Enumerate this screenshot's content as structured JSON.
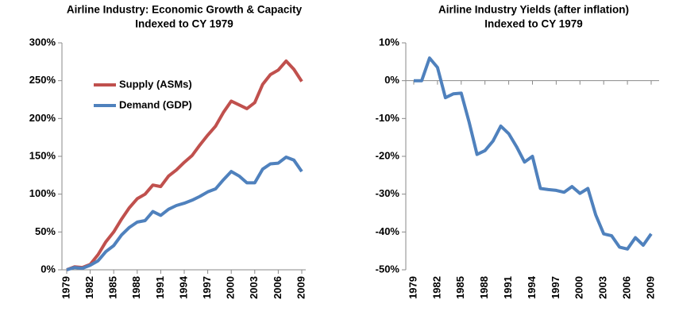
{
  "chart_data": [
    {
      "type": "line",
      "title": "Airline Industry: Economic Growth & Capacity",
      "subtitle": "Indexed to CY 1979",
      "x": [
        1979,
        1980,
        1981,
        1982,
        1983,
        1984,
        1985,
        1986,
        1987,
        1988,
        1989,
        1990,
        1991,
        1992,
        1993,
        1994,
        1995,
        1996,
        1997,
        1998,
        1999,
        2000,
        2001,
        2002,
        2003,
        2004,
        2005,
        2006,
        2007,
        2008,
        2009
      ],
      "series": [
        {
          "name": "Supply (ASMs)",
          "color": "#c0504d",
          "values": [
            0,
            4,
            3,
            7,
            20,
            37,
            50,
            67,
            82,
            94,
            100,
            112,
            110,
            124,
            132,
            142,
            151,
            165,
            178,
            190,
            208,
            223,
            218,
            213,
            221,
            245,
            258,
            264,
            276,
            265,
            249
          ]
        },
        {
          "name": "Demand (GDP)",
          "color": "#4f81bd",
          "values": [
            0,
            3,
            2,
            6,
            12,
            24,
            32,
            46,
            56,
            63,
            65,
            77,
            72,
            80,
            85,
            88,
            92,
            97,
            103,
            107,
            119,
            130,
            124,
            115,
            115,
            133,
            140,
            141,
            149,
            145,
            130
          ]
        }
      ],
      "xlim": [
        1979,
        2009
      ],
      "xticks": [
        1979,
        1982,
        1985,
        1988,
        1991,
        1994,
        1997,
        2000,
        2003,
        2006,
        2009
      ],
      "ylim": [
        0,
        300
      ],
      "yticks": [
        {
          "value": 0,
          "label": "0%"
        },
        {
          "value": 50,
          "label": "50%"
        },
        {
          "value": 100,
          "label": "100%"
        },
        {
          "value": 150,
          "label": "150%"
        },
        {
          "value": 200,
          "label": "200%"
        },
        {
          "value": 250,
          "label": "250%"
        },
        {
          "value": 300,
          "label": "300%"
        }
      ],
      "legend": "upper left"
    },
    {
      "type": "line",
      "title": "Airline Industry Yields (after inflation)",
      "subtitle": "Indexed to CY 1979",
      "x": [
        1979,
        1980,
        1981,
        1982,
        1983,
        1984,
        1985,
        1986,
        1987,
        1988,
        1989,
        1990,
        1991,
        1992,
        1993,
        1994,
        1995,
        1996,
        1997,
        1998,
        1999,
        2000,
        2001,
        2002,
        2003,
        2004,
        2005,
        2006,
        2007,
        2008,
        2009
      ],
      "series": [
        {
          "color": "#4f81bd",
          "values": [
            0,
            0,
            6,
            3.5,
            -4.5,
            -3.5,
            -3.3,
            -11,
            -19.5,
            -18.5,
            -16,
            -12,
            -14,
            -17.5,
            -21.5,
            -20,
            -28.5,
            -28.8,
            -29,
            -29.5,
            -28,
            -29.8,
            -28.5,
            -35.5,
            -40.5,
            -41,
            -44,
            -44.5,
            -41.5,
            -43.5,
            -40.5
          ]
        }
      ],
      "xlim": [
        1979,
        2009
      ],
      "xticks": [
        1979,
        1982,
        1985,
        1988,
        1991,
        1994,
        1997,
        2000,
        2003,
        2006,
        2009
      ],
      "ylim": [
        -50,
        10
      ],
      "yticks": [
        {
          "value": -50,
          "label": "-50%"
        },
        {
          "value": -40,
          "label": "-40%"
        },
        {
          "value": -30,
          "label": "-30%"
        },
        {
          "value": -20,
          "label": "-20%"
        },
        {
          "value": -10,
          "label": "-10%"
        },
        {
          "value": 0,
          "label": "0%"
        },
        {
          "value": 10,
          "label": "10%"
        }
      ]
    }
  ]
}
